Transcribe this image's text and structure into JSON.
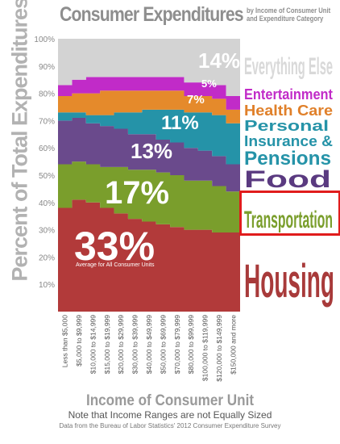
{
  "title": "Consumer Expenditures",
  "subtitle_line1": "by Income of Consumer Unit",
  "subtitle_line2": "and Expenditure Category",
  "ylabel": "Percent of Total Expenditures",
  "xlabel": "Income of Consumer Unit",
  "note": "Note that Income Ranges are not Equally Sized",
  "source": "Data from the Bureau of Labor Statistics' 2012 Consumer Expenditure Survey",
  "avg_label": "Average for All Consumer Units",
  "highlighted_category": "Transportation",
  "chart_data": {
    "type": "area",
    "stacked": true,
    "ylim": [
      0,
      100
    ],
    "yticks": [
      "10%",
      "20%",
      "30%",
      "40%",
      "50%",
      "60%",
      "70%",
      "80%",
      "90%",
      "100%"
    ],
    "categories": [
      "Less than $5,000",
      "$5,000 to $9,999",
      "$10,000 to $14,999",
      "$15,000 to $19,999",
      "$20,000 to $29,999",
      "$30,000 to $39,999",
      "$40,000 to $49,999",
      "$50,000 to $69,999",
      "$70,000 to $79,999",
      "$80,000 to $99,999",
      "$100,000 to $119,999",
      "$120,000 to $149,999",
      "$150,000 and more"
    ],
    "series": [
      {
        "name": "Housing",
        "color": "#b23a3a",
        "avg": "33%",
        "values": [
          38,
          41,
          40,
          38,
          36,
          34,
          33,
          32,
          31,
          30,
          30,
          29,
          29
        ]
      },
      {
        "name": "Transportation",
        "color": "#7a9e2c",
        "avg": "17%",
        "values": [
          16,
          14,
          14,
          15,
          17,
          18,
          19,
          19,
          19,
          18,
          18,
          17,
          15
        ]
      },
      {
        "name": "Food",
        "color": "#6a4a8c",
        "avg": "13%",
        "values": [
          16,
          16,
          15,
          15,
          14,
          13,
          13,
          12,
          12,
          12,
          11,
          11,
          10
        ]
      },
      {
        "name": "Personal Insurance & Pensions",
        "color": "#2593a8",
        "avg": "11%",
        "values": [
          3,
          2,
          3,
          4,
          6,
          8,
          9,
          11,
          12,
          13,
          14,
          15,
          15
        ]
      },
      {
        "name": "Health Care",
        "color": "#e58a2b",
        "avg": "7%",
        "values": [
          6,
          7,
          8,
          9,
          8,
          8,
          7,
          7,
          7,
          6,
          6,
          6,
          5
        ]
      },
      {
        "name": "Entertainment",
        "color": "#c12bc8",
        "avg": "5%",
        "values": [
          4,
          5,
          6,
          5,
          5,
          5,
          5,
          5,
          5,
          5,
          5,
          5,
          5
        ]
      },
      {
        "name": "Everything Else",
        "color": "#d3d3d3",
        "avg": "14%",
        "values": [
          17,
          15,
          14,
          14,
          14,
          14,
          14,
          14,
          14,
          16,
          16,
          17,
          21
        ]
      }
    ],
    "legend": [
      {
        "text": "Everything Else",
        "color": "#d0d0d0"
      },
      {
        "text": "Entertainment",
        "color": "#c12bc8"
      },
      {
        "text": "Health Care",
        "color": "#e0802a"
      },
      {
        "text": "Personal",
        "color": "#2593a8"
      },
      {
        "text": "Insurance &",
        "color": "#2593a8"
      },
      {
        "text": "Pensions",
        "color": "#2593a8"
      },
      {
        "text": "Food",
        "color": "#5a3a80"
      },
      {
        "text": "Transportation",
        "color": "#7a9e2c"
      },
      {
        "text": "Housing",
        "color": "#a83a3a"
      }
    ]
  }
}
